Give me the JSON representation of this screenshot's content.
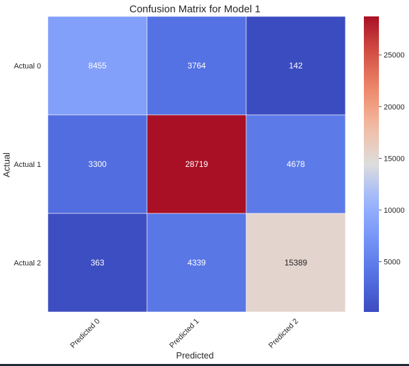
{
  "chart_data": {
    "type": "heatmap",
    "title": "Confusion Matrix for Model 1",
    "xlabel": "Predicted",
    "ylabel": "Actual",
    "x_categories": [
      "Predicted 0",
      "Predicted 1",
      "Predicted 2"
    ],
    "y_categories": [
      "Actual 0",
      "Actual 1",
      "Actual 2"
    ],
    "values": [
      [
        8455,
        3764,
        142
      ],
      [
        3300,
        28719,
        4678
      ],
      [
        363,
        4339,
        15389
      ]
    ],
    "colormap": "coolwarm",
    "vmin": 142,
    "vmax": 28719,
    "colorbar_ticks": [
      5000,
      10000,
      15000,
      20000,
      25000
    ],
    "annotations": true
  }
}
